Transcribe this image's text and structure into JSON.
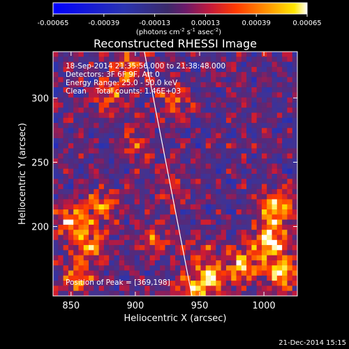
{
  "chart_data": {
    "type": "heatmap",
    "title": "Reconstructed RHESSI Image",
    "xlabel": "Heliocentric X (arcsec)",
    "ylabel": "Heliocentric Y (arcsec)",
    "xlim": [
      836,
      1026
    ],
    "ylim": [
      146,
      336
    ],
    "xticks": [
      850,
      900,
      950,
      1000
    ],
    "yticks": [
      200,
      250,
      300
    ],
    "colorbar": {
      "label_main": "(photons cm",
      "label_sup1": "-2",
      "label_mid": " s",
      "label_sup2": "-1",
      "label_tail": " asec",
      "label_sup3": "-2",
      "label_end": ")",
      "range": [
        -0.00065,
        0.00065
      ],
      "ticks": [
        -0.00065,
        -0.00039,
        -0.00013,
        0.00013,
        0.00039,
        0.00065
      ],
      "tick_labels": [
        "-0.00065",
        "-0.00039",
        "-0.00013",
        "0.00013",
        "0.00039",
        "0.00065"
      ]
    },
    "annotations": [
      "18-Sep-2014 21:35:56.000 to 21:38:48.000",
      "Detectors: 3F 6F 9F, Att 0",
      "Energy Range: 25.0 - 50.0 keV",
      "Clean    Total counts: 1.46E+03"
    ],
    "peak_label": "Position of Peak = [369,198]",
    "limb_line": [
      [
        907,
        336
      ],
      [
        944,
        146
      ]
    ],
    "hotspots": [
      {
        "x": 1005,
        "y": 190,
        "strength": 1.0
      },
      {
        "x": 1010,
        "y": 215,
        "strength": 0.9
      },
      {
        "x": 985,
        "y": 170,
        "strength": 0.8
      },
      {
        "x": 1015,
        "y": 165,
        "strength": 0.85
      },
      {
        "x": 960,
        "y": 160,
        "strength": 0.7
      },
      {
        "x": 945,
        "y": 150,
        "strength": 0.75
      },
      {
        "x": 850,
        "y": 205,
        "strength": 0.8
      },
      {
        "x": 865,
        "y": 185,
        "strength": 0.75
      },
      {
        "x": 875,
        "y": 215,
        "strength": 0.6
      },
      {
        "x": 855,
        "y": 160,
        "strength": 0.6
      },
      {
        "x": 880,
        "y": 300,
        "strength": 0.55
      },
      {
        "x": 895,
        "y": 325,
        "strength": 0.65
      },
      {
        "x": 930,
        "y": 300,
        "strength": 0.55
      },
      {
        "x": 900,
        "y": 265,
        "strength": 0.45
      },
      {
        "x": 930,
        "y": 230,
        "strength": 0.4
      },
      {
        "x": 915,
        "y": 190,
        "strength": 0.45
      },
      {
        "x": 950,
        "y": 180,
        "strength": 0.4
      }
    ]
  },
  "footer": {
    "date": "21-Dec-2014 15:15"
  }
}
